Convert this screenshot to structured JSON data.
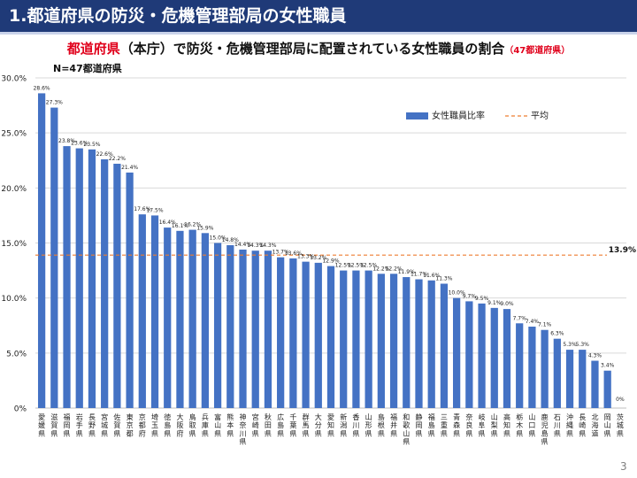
{
  "slide": {
    "title": "1.都道府県の防災・危機管理部局の女性職員",
    "subtitle_red": "都道府県",
    "subtitle_main": "（本庁）で防災・危機管理部局に配置されている女性職員の割合",
    "subtitle_note": "（47都道府県）",
    "n_note": "N=47都道府県",
    "page_number": "3"
  },
  "colors": {
    "bar": "#4472c4",
    "avg_line": "#ed7d31",
    "title_bg": "#1f3a78",
    "accent_red": "#e0001b"
  },
  "chart_data": {
    "type": "bar",
    "title": "都道府県（本庁）で防災・危機管理部局に配置されている女性職員の割合（47都道府県）",
    "ylim": [
      0,
      30
    ],
    "yticks": [
      "0%",
      "5.0%",
      "10.0%",
      "15.0%",
      "20.0%",
      "25.0%",
      "30.0%"
    ],
    "grid": true,
    "legend_position": "top-right",
    "series": [
      {
        "name": "女性職員比率"
      }
    ],
    "average": {
      "name": "平均",
      "value": 13.9,
      "label": "13.9%"
    },
    "categories": [
      "愛媛県",
      "滋賀県",
      "福岡県",
      "岩手県",
      "長野県",
      "宮城県",
      "佐賀県",
      "東京都",
      "京都府",
      "埼玉県",
      "徳島県",
      "大阪府",
      "鳥取県",
      "兵庫県",
      "富山県",
      "熊本県",
      "神奈川県",
      "宮崎県",
      "秋田県",
      "広島県",
      "千葉県",
      "群馬県",
      "大分県",
      "愛知県",
      "新潟県",
      "香川県",
      "山形県",
      "島根県",
      "福井県",
      "和歌山県",
      "静岡県",
      "福島県",
      "三重県",
      "青森県",
      "奈良県",
      "岐阜県",
      "山梨県",
      "高知県",
      "栃木県",
      "山口県",
      "鹿児島県",
      "石川県",
      "沖縄県",
      "長崎県",
      "北海道",
      "岡山県",
      "茨城県"
    ],
    "values": [
      28.6,
      27.3,
      23.8,
      23.6,
      23.5,
      22.6,
      22.2,
      21.4,
      17.6,
      17.5,
      16.4,
      16.1,
      16.2,
      15.9,
      15.0,
      14.8,
      14.4,
      14.3,
      14.3,
      13.7,
      13.6,
      13.3,
      13.2,
      12.9,
      12.5,
      12.5,
      12.5,
      12.2,
      12.2,
      11.9,
      11.7,
      11.6,
      11.3,
      10.0,
      9.7,
      9.5,
      9.1,
      9.0,
      7.7,
      7.4,
      7.1,
      6.3,
      5.3,
      5.3,
      4.3,
      3.4,
      0
    ],
    "data_labels": [
      "28.6%",
      "27.3%",
      "23.8%",
      "23.6%",
      "23.5%",
      "22.6%",
      "22.2%",
      "21.4%",
      "17.6%",
      "17.5%",
      "16.4%",
      "16.1%",
      "16.2%",
      "15.9%",
      "15.0%",
      "14.8%",
      "14.4%",
      "14.3%",
      "14.3%",
      "13.7%",
      "13.6%",
      "13.3%",
      "13.2%",
      "12.9%",
      "12.5%",
      "12.5%",
      "12.5%",
      "12.2%",
      "12.2%",
      "11.9%",
      "11.7%",
      "11.6%",
      "11.3%",
      "10.0%",
      "9.7%",
      "9.5%",
      "9.1%",
      "9.0%",
      "7.7%",
      "7.4%",
      "7.1%",
      "6.3%",
      "5.3%",
      "5.3%",
      "4.3%",
      "3.4%",
      "0%"
    ]
  }
}
